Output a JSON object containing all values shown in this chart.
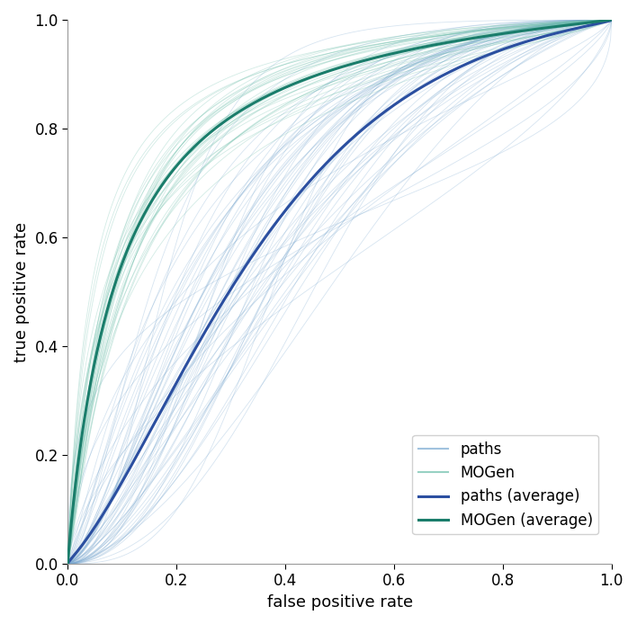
{
  "xlabel": "false positive rate",
  "ylabel": "true positive rate",
  "xlim": [
    0,
    1
  ],
  "ylim": [
    0,
    1
  ],
  "xticks": [
    0,
    0.2,
    0.4,
    0.6,
    0.8,
    1
  ],
  "yticks": [
    0,
    0.2,
    0.4,
    0.6,
    0.8,
    1
  ],
  "paths_color": "#7aa8d0",
  "mogen_color": "#6dbfaa",
  "paths_avg_color": "#2b4fa0",
  "mogen_avg_color": "#1a7d6b",
  "paths_alpha": 0.3,
  "mogen_alpha": 0.3,
  "n_paths_curves": 60,
  "n_mogen_curves": 35,
  "legend_labels": [
    "paths",
    "MOGen",
    "paths (average)",
    "MOGen (average)"
  ],
  "axis_label_fontsize": 13,
  "tick_fontsize": 12,
  "legend_fontsize": 12
}
